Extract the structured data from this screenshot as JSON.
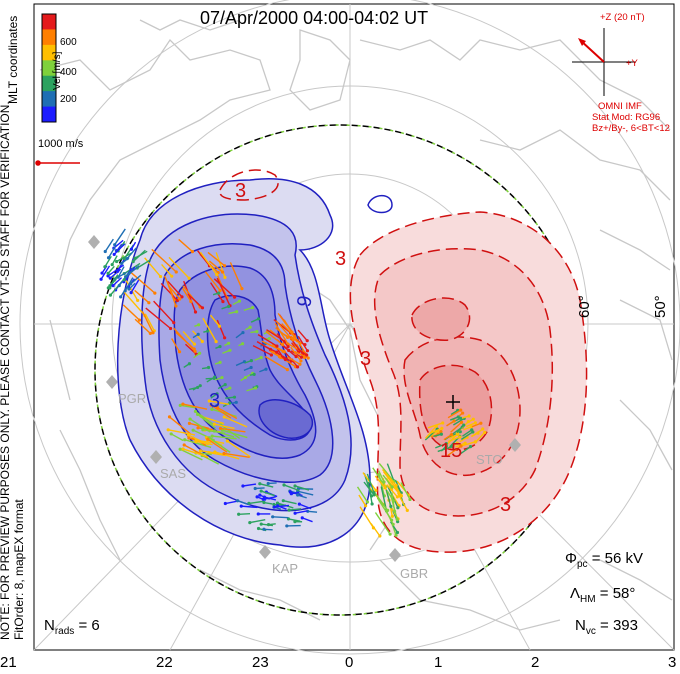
{
  "title": "07/Apr/2000 04:00-04:02 UT",
  "note_line1": "NOTE: FOR PREVIEW PURPOSES ONLY. PLEASE CONTACT VT-SD STAFF FOR VERIFICATION.",
  "note_line2": "FitOrder: 8, mapEX format",
  "coordinates_label": "MLT coordinates",
  "colorbar": {
    "label": "Vel [m/s]",
    "ticks": [
      "600",
      "400",
      "200"
    ],
    "colors": [
      "#e41a1c",
      "#ff7f00",
      "#ffbf00",
      "#7fd13b",
      "#2ca25f",
      "#1f6fb4",
      "#1c1cff"
    ]
  },
  "vector_reference": "1000 m/s",
  "imf": {
    "z_label": "+Z (20 nT)",
    "y_label": "+Y",
    "source": "OMNI IMF",
    "model": "Stat Mod: RG96",
    "condition": "Bz+/By-, 6<BT<12"
  },
  "stats": {
    "phi_symbol": "Φ",
    "phi_sub": "pc",
    "phi_value": " = 56 kV",
    "lambda_symbol": "Λ",
    "lambda_sub": "HM",
    "lambda_value": " = 58°",
    "nvc_symbol": "N",
    "nvc_sub": "vc",
    "nvc_value": " = 393",
    "nrads_symbol": "N",
    "nrads_sub": "rads",
    "nrads_value": " = 6"
  },
  "mlt_ticks": [
    "21",
    "22",
    "23",
    "0",
    "1",
    "2",
    "3"
  ],
  "latitude_labels": [
    "60°",
    "50°"
  ],
  "sites": [
    "PGR",
    "SAS",
    "KAP",
    "GBR",
    "STO"
  ],
  "contour_labels": [
    "3",
    "9",
    "3",
    "3",
    "3",
    "15",
    "3"
  ],
  "colors": {
    "negative_cell": "#2020c0",
    "positive_cell": "#d01010",
    "coast": "#c8c8c8",
    "boundary": "#7fd13b"
  }
}
